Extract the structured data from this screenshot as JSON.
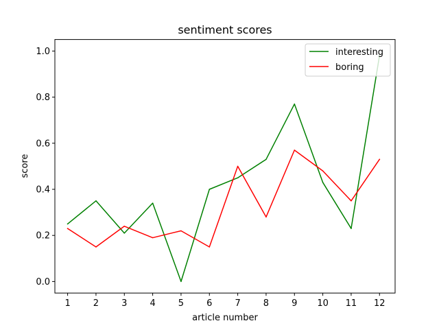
{
  "chart_data": {
    "type": "line",
    "title": "sentiment scores",
    "xlabel": "article number",
    "ylabel": "score",
    "x": [
      1,
      2,
      3,
      4,
      5,
      6,
      7,
      8,
      9,
      10,
      11,
      12
    ],
    "x_tick_labels": [
      "1",
      "2",
      "3",
      "4",
      "5",
      "6",
      "7",
      "8",
      "9",
      "10",
      "11",
      "12"
    ],
    "y_ticks": [
      0.0,
      0.2,
      0.4,
      0.6,
      0.8,
      1.0
    ],
    "y_tick_labels": [
      "0.0",
      "0.2",
      "0.4",
      "0.6",
      "0.8",
      "1.0"
    ],
    "xlim": [
      0.55,
      12.55
    ],
    "ylim": [
      -0.05,
      1.05
    ],
    "grid": false,
    "legend_position": "top-right",
    "series": [
      {
        "name": "interesting",
        "color": "#008000",
        "values": [
          0.25,
          0.35,
          0.21,
          0.34,
          0.0,
          0.4,
          0.45,
          0.53,
          0.77,
          0.43,
          0.23,
          0.98
        ]
      },
      {
        "name": "boring",
        "color": "#ff0000",
        "values": [
          0.23,
          0.15,
          0.24,
          0.19,
          0.22,
          0.15,
          0.5,
          0.28,
          0.57,
          0.48,
          0.35,
          0.53
        ]
      }
    ]
  }
}
